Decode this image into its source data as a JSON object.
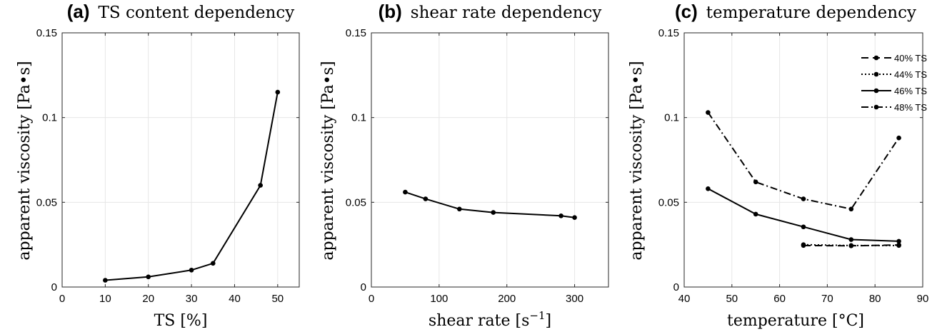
{
  "chart_data": [
    {
      "type": "line",
      "panel_letter": "(a)",
      "title": "TS content dependency",
      "xlabel": "TS [%]",
      "ylabel": "apparent viscosity [Pa•s]",
      "xlim": [
        0,
        55
      ],
      "ylim": [
        0,
        0.15
      ],
      "xticks": [
        0,
        10,
        20,
        30,
        40,
        50
      ],
      "xtick_labels": [
        "0",
        "10",
        "20",
        "30",
        "40",
        "50"
      ],
      "yticks": [
        0,
        0.05,
        0.1,
        0.15
      ],
      "ytick_labels": [
        "0",
        "0.05",
        "0.1",
        "0.15"
      ],
      "grid": true,
      "series": [
        {
          "dash": "solid",
          "x": [
            10,
            20,
            30,
            35,
            46,
            50
          ],
          "y": [
            0.004,
            0.006,
            0.01,
            0.014,
            0.06,
            0.115
          ]
        }
      ]
    },
    {
      "type": "line",
      "panel_letter": "(b)",
      "title": "shear rate dependency",
      "xlabel": "shear rate [s",
      "xlabel_sup": "−1",
      "xlabel_end": "]",
      "ylabel": "apparent viscosity [Pa•s]",
      "xlim": [
        0,
        350
      ],
      "ylim": [
        0,
        0.15
      ],
      "xticks": [
        0,
        100,
        200,
        300
      ],
      "xtick_labels": [
        "0",
        "100",
        "200",
        "300"
      ],
      "yticks": [
        0,
        0.05,
        0.1,
        0.15
      ],
      "ytick_labels": [
        "0",
        "0.05",
        "0.1",
        "0.15"
      ],
      "grid": true,
      "series": [
        {
          "dash": "solid",
          "x": [
            50,
            80,
            130,
            180,
            280,
            300
          ],
          "y": [
            0.056,
            0.052,
            0.046,
            0.044,
            0.042,
            0.041
          ]
        }
      ]
    },
    {
      "type": "line",
      "panel_letter": "(c)",
      "title": "temperature dependency",
      "xlabel": "temperature [°C]",
      "ylabel": "apparent viscosity [Pa•s]",
      "xlim": [
        40,
        90
      ],
      "ylim": [
        0,
        0.15
      ],
      "xticks": [
        40,
        50,
        60,
        70,
        80,
        90
      ],
      "xtick_labels": [
        "40",
        "50",
        "60",
        "70",
        "80",
        "90"
      ],
      "yticks": [
        0,
        0.05,
        0.1,
        0.15
      ],
      "ytick_labels": [
        "0",
        "0.05",
        "0.1",
        "0.15"
      ],
      "grid": true,
      "legend_position": "top-right",
      "series": [
        {
          "name": "40% TS",
          "dash": "dashed",
          "x": [
            65,
            75,
            85
          ],
          "y": [
            0.0245,
            0.0243,
            0.0248
          ]
        },
        {
          "name": "44% TS",
          "dash": "dotted",
          "x": [
            65,
            75,
            85
          ],
          "y": [
            0.025,
            0.0245,
            0.0245
          ]
        },
        {
          "name": "46% TS",
          "dash": "solid",
          "x": [
            45,
            55,
            65,
            75,
            85
          ],
          "y": [
            0.058,
            0.043,
            0.0355,
            0.028,
            0.027
          ]
        },
        {
          "name": "48% TS",
          "dash": "dashdot",
          "x": [
            45,
            55,
            65,
            75,
            85
          ],
          "y": [
            0.103,
            0.062,
            0.052,
            0.046,
            0.088
          ]
        }
      ]
    }
  ]
}
